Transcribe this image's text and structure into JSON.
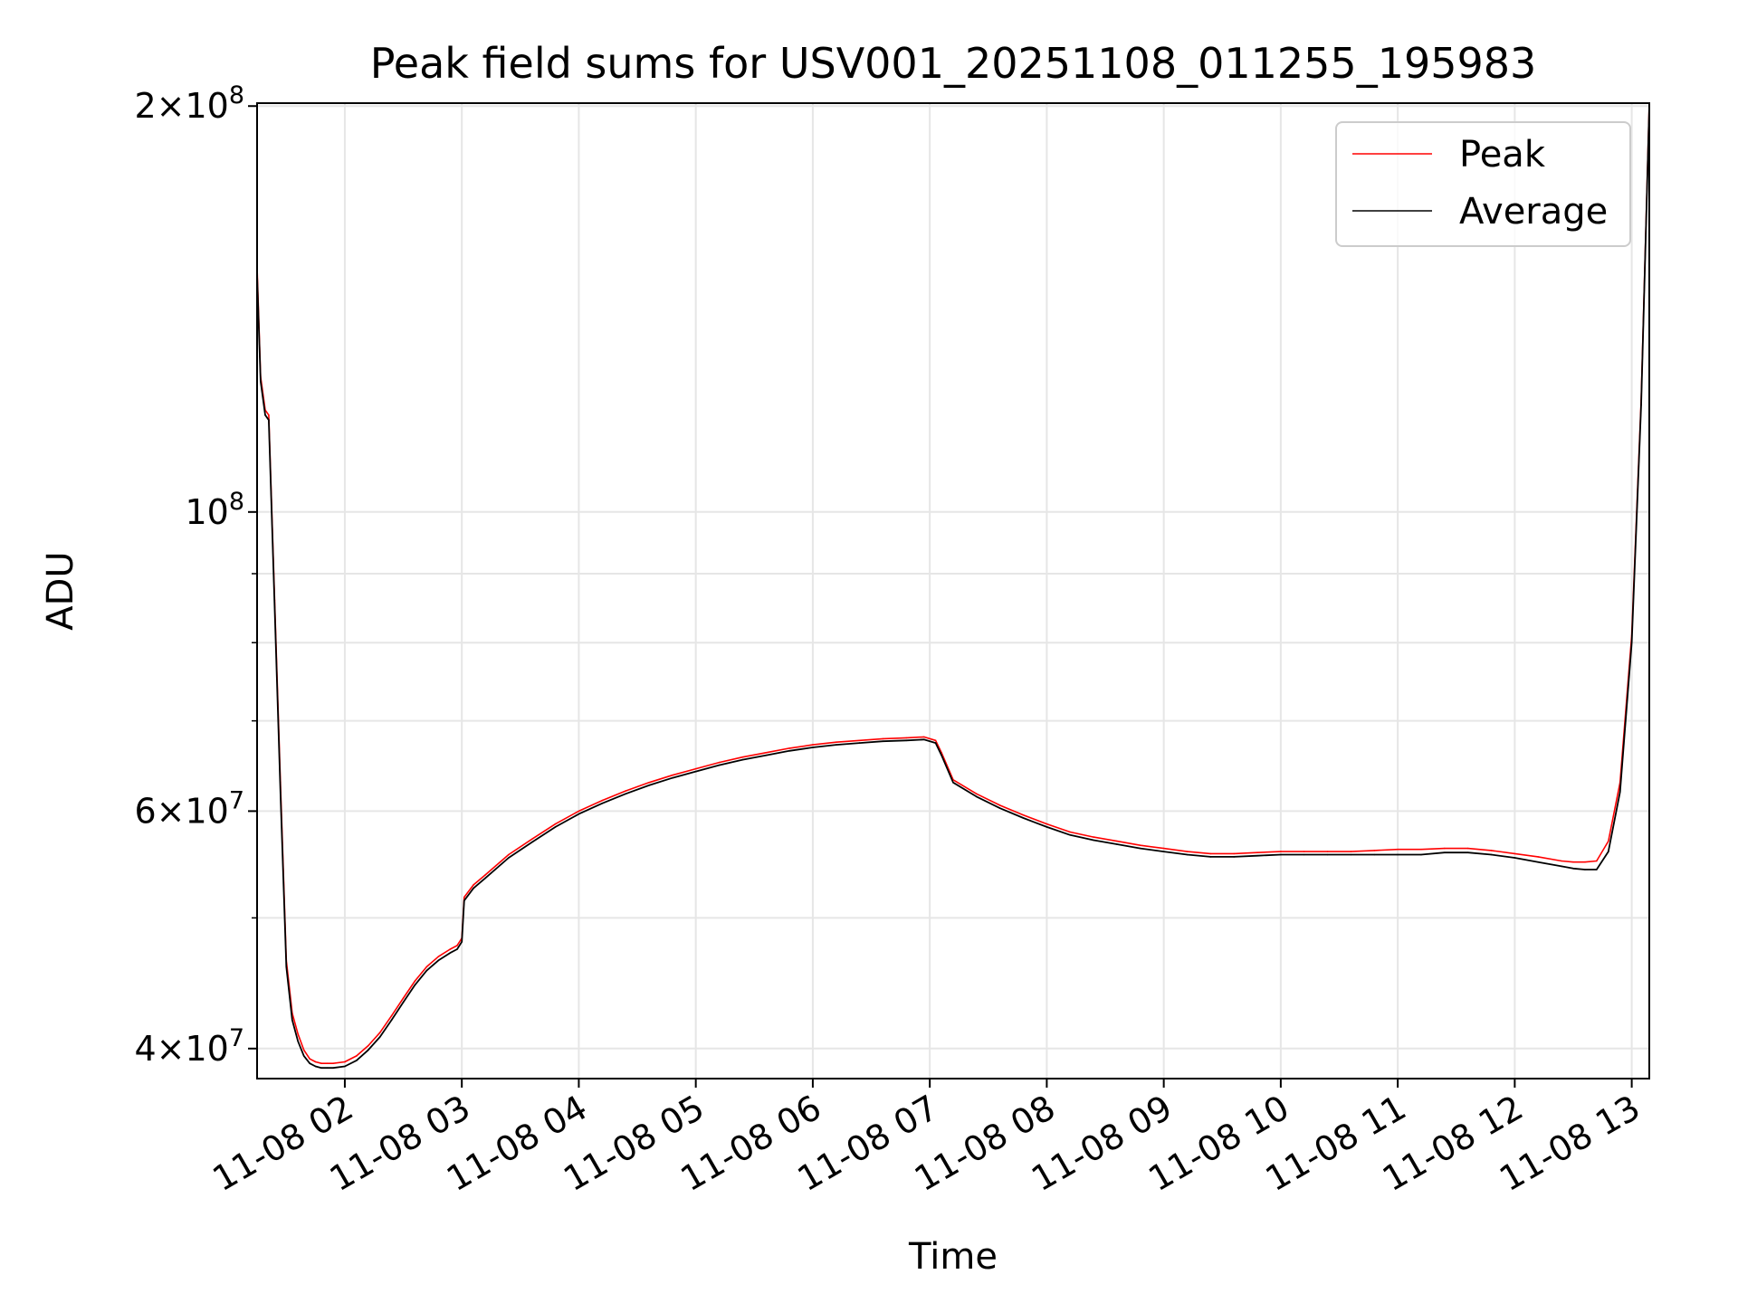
{
  "chart_data": {
    "type": "line",
    "title": "Peak field sums for USV001_20251108_011255_195983",
    "xlabel": "Time",
    "ylabel": "ADU",
    "yscale": "log",
    "xlim": [
      1.25,
      13.15
    ],
    "ylim": [
      38000000,
      201000000
    ],
    "x_unit": "hours since 11-08 00:00",
    "x_ticks": [
      {
        "value": 2,
        "label": "11-08 02"
      },
      {
        "value": 3,
        "label": "11-08 03"
      },
      {
        "value": 4,
        "label": "11-08 04"
      },
      {
        "value": 5,
        "label": "11-08 05"
      },
      {
        "value": 6,
        "label": "11-08 06"
      },
      {
        "value": 7,
        "label": "11-08 07"
      },
      {
        "value": 8,
        "label": "11-08 08"
      },
      {
        "value": 9,
        "label": "11-08 09"
      },
      {
        "value": 10,
        "label": "11-08 10"
      },
      {
        "value": 11,
        "label": "11-08 11"
      },
      {
        "value": 12,
        "label": "11-08 12"
      },
      {
        "value": 13,
        "label": "11-08 13"
      }
    ],
    "y_ticks_major": [
      {
        "value": 40000000,
        "base": "4×10",
        "exp": "7"
      },
      {
        "value": 60000000,
        "base": "6×10",
        "exp": "7"
      },
      {
        "value": 100000000,
        "base": "10",
        "exp": "8"
      },
      {
        "value": 200000000,
        "base": "2×10",
        "exp": "8"
      }
    ],
    "y_ticks_minor": [
      50000000,
      70000000,
      80000000,
      90000000
    ],
    "grid": true,
    "legend_position": "top-right",
    "series": [
      {
        "name": "Average",
        "color": "#000000",
        "x": [
          1.25,
          1.28,
          1.32,
          1.35,
          1.4,
          1.45,
          1.5,
          1.55,
          1.6,
          1.65,
          1.7,
          1.75,
          1.8,
          1.85,
          1.9,
          2.0,
          2.1,
          2.2,
          2.3,
          2.4,
          2.5,
          2.6,
          2.7,
          2.8,
          2.9,
          2.96,
          3.0,
          3.02,
          3.1,
          3.2,
          3.4,
          3.6,
          3.8,
          4.0,
          4.2,
          4.4,
          4.6,
          4.8,
          5.0,
          5.2,
          5.4,
          5.6,
          5.8,
          6.0,
          6.2,
          6.4,
          6.6,
          6.8,
          6.95,
          7.05,
          7.1,
          7.2,
          7.4,
          7.6,
          7.8,
          8.0,
          8.2,
          8.4,
          8.6,
          8.8,
          9.0,
          9.2,
          9.4,
          9.6,
          9.8,
          10.0,
          10.2,
          10.4,
          10.6,
          10.8,
          11.0,
          11.2,
          11.4,
          11.6,
          11.8,
          12.0,
          12.2,
          12.4,
          12.5,
          12.6,
          12.7,
          12.8,
          12.9,
          13.0,
          13.08,
          13.15
        ],
        "values": [
          150000000,
          125000000,
          118000000,
          117000000,
          85000000,
          62000000,
          46000000,
          42000000,
          40500000,
          39500000,
          39000000,
          38800000,
          38700000,
          38700000,
          38700000,
          38800000,
          39200000,
          39900000,
          40800000,
          42000000,
          43300000,
          44600000,
          45700000,
          46500000,
          47100000,
          47400000,
          48000000,
          51500000,
          52600000,
          53500000,
          55400000,
          56900000,
          58400000,
          59700000,
          60800000,
          61800000,
          62700000,
          63500000,
          64200000,
          64900000,
          65500000,
          66000000,
          66500000,
          66900000,
          67200000,
          67400000,
          67600000,
          67700000,
          67800000,
          67400000,
          66000000,
          63000000,
          61500000,
          60300000,
          59300000,
          58400000,
          57600000,
          57100000,
          56700000,
          56300000,
          56000000,
          55700000,
          55500000,
          55500000,
          55600000,
          55700000,
          55700000,
          55700000,
          55700000,
          55700000,
          55700000,
          55700000,
          55900000,
          55900000,
          55700000,
          55400000,
          55000000,
          54600000,
          54400000,
          54300000,
          54300000,
          56000000,
          62000000,
          80000000,
          120000000,
          200000000
        ]
      },
      {
        "name": "Peak",
        "color": "#ff0000",
        "x": [
          1.25,
          1.28,
          1.32,
          1.35,
          1.4,
          1.45,
          1.5,
          1.55,
          1.6,
          1.65,
          1.7,
          1.75,
          1.8,
          1.85,
          1.9,
          2.0,
          2.1,
          2.2,
          2.3,
          2.4,
          2.5,
          2.6,
          2.7,
          2.8,
          2.9,
          2.96,
          3.0,
          3.02,
          3.1,
          3.2,
          3.4,
          3.6,
          3.8,
          4.0,
          4.2,
          4.4,
          4.6,
          4.8,
          5.0,
          5.2,
          5.4,
          5.6,
          5.8,
          6.0,
          6.2,
          6.4,
          6.6,
          6.8,
          6.95,
          7.05,
          7.1,
          7.2,
          7.4,
          7.6,
          7.8,
          8.0,
          8.2,
          8.4,
          8.6,
          8.8,
          9.0,
          9.2,
          9.4,
          9.6,
          9.8,
          10.0,
          10.2,
          10.4,
          10.6,
          10.8,
          11.0,
          11.2,
          11.4,
          11.6,
          11.8,
          12.0,
          12.2,
          12.4,
          12.5,
          12.6,
          12.7,
          12.8,
          12.9,
          13.0,
          13.08,
          13.15
        ],
        "values": [
          152000000,
          126000000,
          119000000,
          118000000,
          86000000,
          63000000,
          46500000,
          42500000,
          41000000,
          39900000,
          39300000,
          39100000,
          39000000,
          39000000,
          39000000,
          39100000,
          39500000,
          40200000,
          41100000,
          42300000,
          43600000,
          44900000,
          46000000,
          46800000,
          47400000,
          47700000,
          48300000,
          51800000,
          52900000,
          53800000,
          55700000,
          57200000,
          58700000,
          60000000,
          61100000,
          62100000,
          63000000,
          63800000,
          64500000,
          65200000,
          65800000,
          66300000,
          66800000,
          67200000,
          67500000,
          67700000,
          67900000,
          68000000,
          68100000,
          67700000,
          66300000,
          63300000,
          61800000,
          60600000,
          59600000,
          58700000,
          57900000,
          57400000,
          57000000,
          56600000,
          56300000,
          56000000,
          55800000,
          55800000,
          55900000,
          56000000,
          56000000,
          56000000,
          56000000,
          56100000,
          56200000,
          56200000,
          56300000,
          56300000,
          56100000,
          55800000,
          55500000,
          55100000,
          55000000,
          55000000,
          55100000,
          57000000,
          63000000,
          81000000,
          121000000,
          201000000
        ]
      }
    ]
  }
}
